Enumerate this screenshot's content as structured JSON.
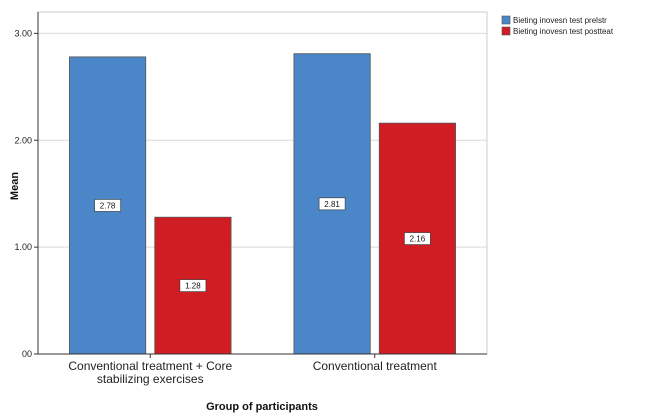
{
  "chart_data": {
    "type": "bar",
    "categories": [
      [
        "Conventional treatment + Core",
        "stabilizing exercises"
      ],
      [
        "Conventional treatment"
      ]
    ],
    "series": [
      {
        "name": "Bieting inovesn test prelstr",
        "values": [
          2.78,
          2.81
        ],
        "labels": [
          "2.78",
          "2.81"
        ],
        "color": "#4a86c8"
      },
      {
        "name": "Bieting inovesn test postteat",
        "values": [
          1.28,
          2.16
        ],
        "labels": [
          "1.28",
          "2.16"
        ],
        "color": "#d01d24"
      }
    ],
    "yticks": [
      0,
      1,
      2,
      3
    ],
    "ytick_labels": [
      "00",
      "1.00",
      "2.00",
      "3.00"
    ],
    "ylim": [
      0,
      3.2
    ],
    "xlabel": "Group of participants",
    "ylabel": "Mean",
    "legend_position": "top-right",
    "grid": true
  }
}
